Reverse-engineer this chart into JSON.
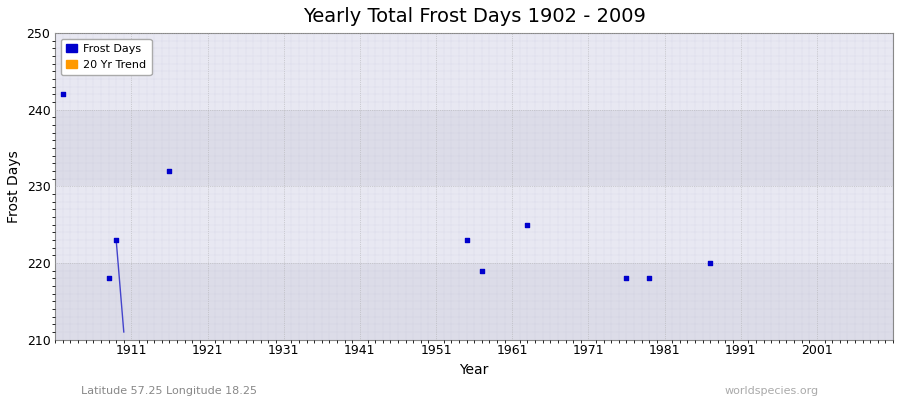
{
  "title": "Yearly Total Frost Days 1902 - 2009",
  "xlabel": "Year",
  "ylabel": "Frost Days",
  "xlim": [
    1901,
    2011
  ],
  "ylim": [
    210,
    250
  ],
  "yticks": [
    210,
    220,
    230,
    240,
    250
  ],
  "xticks": [
    1911,
    1921,
    1931,
    1941,
    1951,
    1961,
    1971,
    1981,
    1991,
    2001
  ],
  "scatter_color": "#0000cc",
  "trend_color": "#4444cc",
  "background_color": "#e8e8f0",
  "band_color_light": "#e0e0ec",
  "band_color_dark": "#d0d0e0",
  "frost_days_x": [
    1902,
    1908,
    1909,
    1916,
    1955,
    1957,
    1963,
    1976,
    1979,
    1987
  ],
  "frost_days_y": [
    242,
    218,
    223,
    232,
    223,
    219,
    225,
    218,
    218,
    220
  ],
  "trend_x": [
    1909,
    1910
  ],
  "trend_y": [
    223,
    211
  ],
  "legend_frost_color": "#0000cc",
  "legend_trend_color": "#ff9900",
  "subtitle": "Latitude 57.25 Longitude 18.25",
  "watermark": "worldspecies.org",
  "title_fontsize": 14,
  "label_fontsize": 10,
  "tick_fontsize": 9,
  "subtitle_fontsize": 8,
  "watermark_fontsize": 8
}
